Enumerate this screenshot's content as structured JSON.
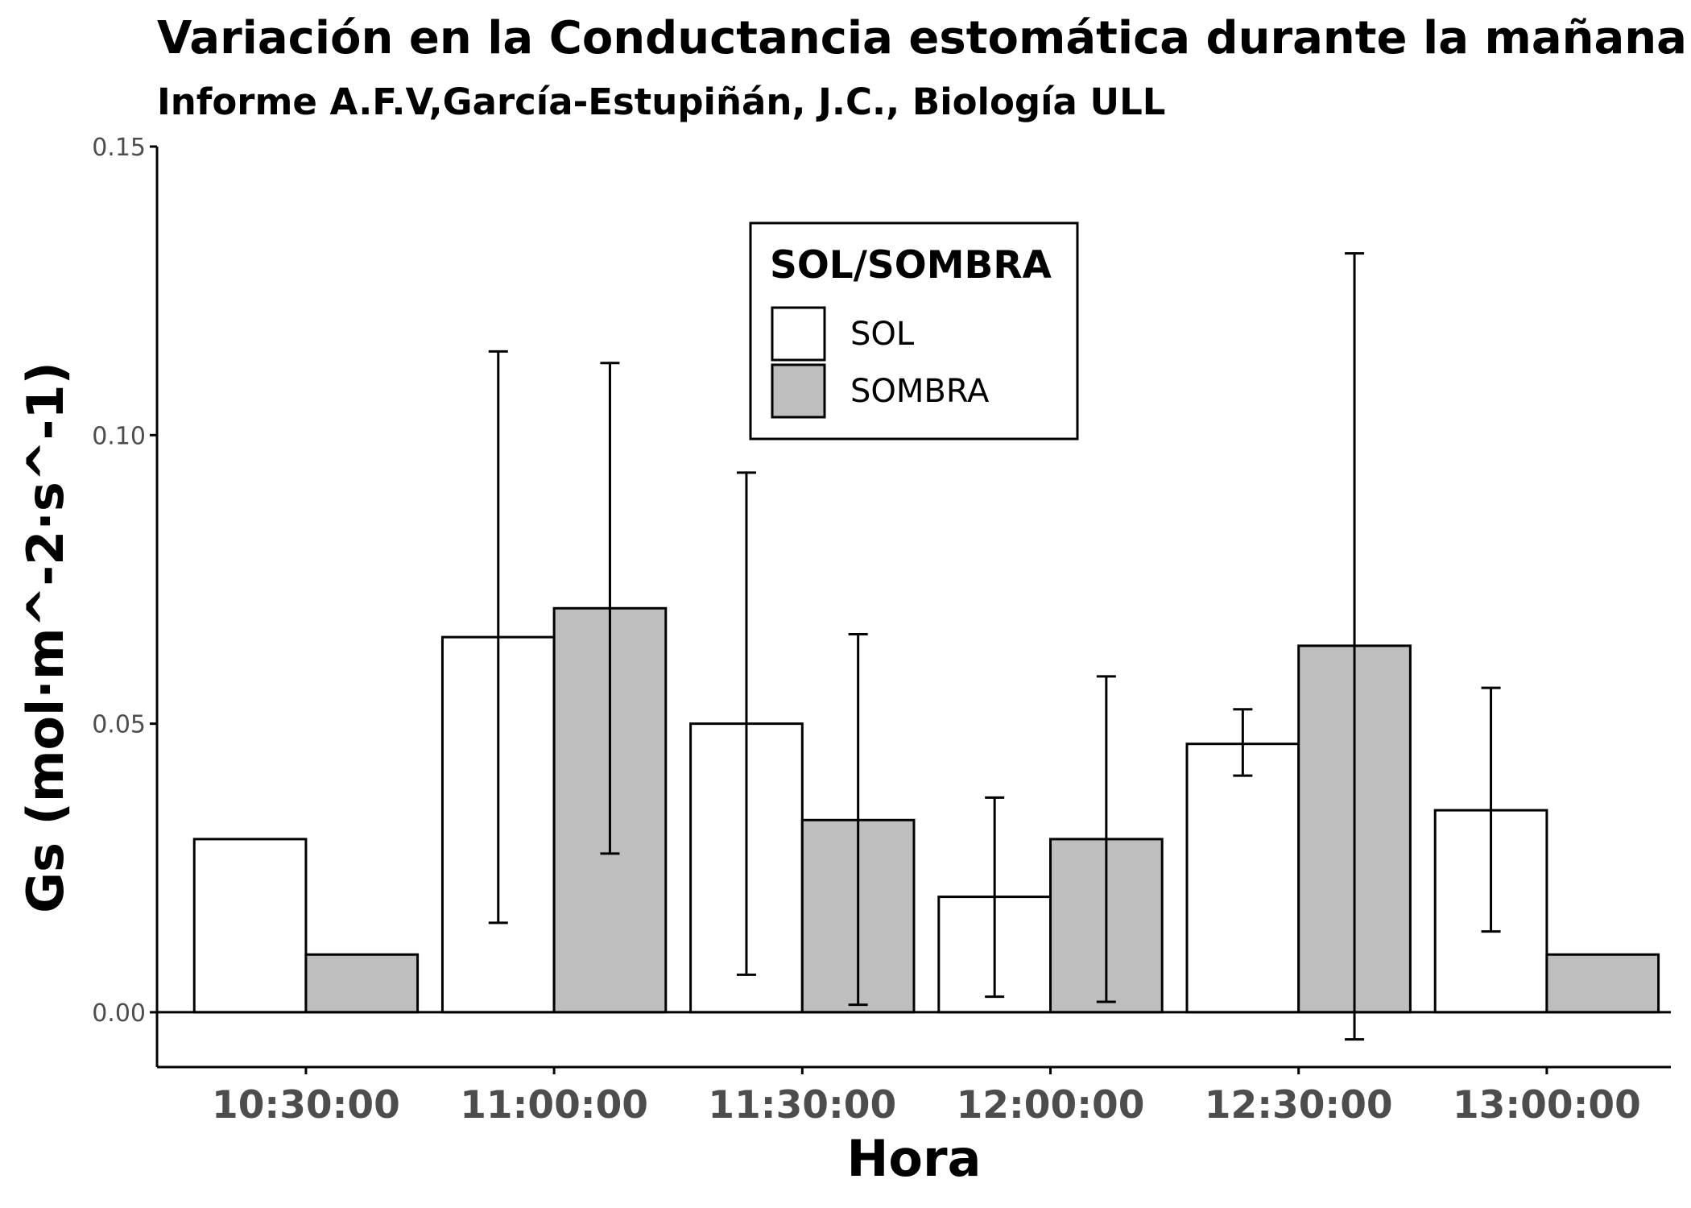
{
  "chart_data": {
    "type": "bar",
    "title": "Variación en la Conductancia estomática durante la mañana",
    "subtitle": "Informe A.F.V,García-Estupiñán, J.C., Biología ULL",
    "xlabel": "Hora",
    "ylabel": "Gs (mol·m^-2·s^-1)",
    "ylim": [
      -0.0095,
      0.15
    ],
    "yticks": [
      0.0,
      0.05,
      0.1,
      0.15
    ],
    "ytick_labels": [
      "0.00",
      "0.05",
      "0.10",
      "0.15"
    ],
    "grid": false,
    "categories": [
      "10:30:00",
      "11:00:00",
      "11:30:00",
      "12:00:00",
      "12:30:00",
      "13:00:00"
    ],
    "legend": {
      "title": "SOL/SOMBRA",
      "position": "top-center",
      "entries": [
        "SOL",
        "SOMBRA"
      ]
    },
    "series": [
      {
        "name": "SOL",
        "color": "#ffffff",
        "values": [
          0.03,
          0.065,
          0.05,
          0.02,
          0.0465,
          0.035
        ],
        "error_low": [
          null,
          0.0155,
          0.0065,
          0.0027,
          0.041,
          0.014
        ],
        "error_high": [
          null,
          0.1145,
          0.0935,
          0.0372,
          0.0525,
          0.0562
        ]
      },
      {
        "name": "SOMBRA",
        "color": "#bebebe",
        "values": [
          0.01,
          0.07,
          0.0333,
          0.03,
          0.0635,
          0.01
        ],
        "error_low": [
          null,
          0.0275,
          0.0013,
          0.0018,
          -0.0047,
          null
        ],
        "error_high": [
          null,
          0.1125,
          0.0655,
          0.0582,
          0.1315,
          null
        ]
      }
    ]
  }
}
